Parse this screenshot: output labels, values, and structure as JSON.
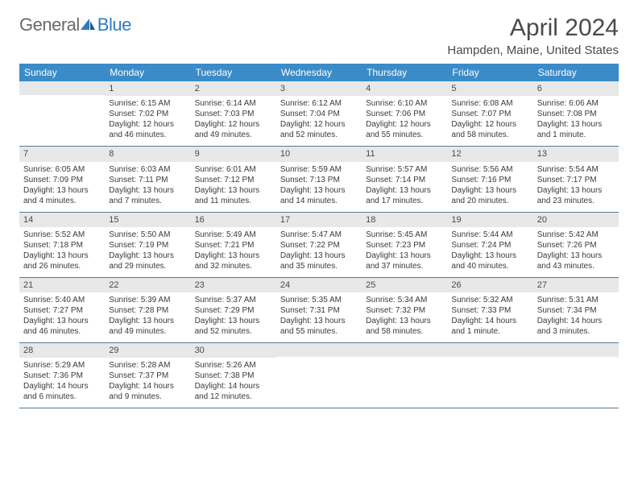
{
  "logo": {
    "text1": "General",
    "text2": "Blue"
  },
  "title": "April 2024",
  "location": "Hampden, Maine, United States",
  "colors": {
    "header_bg": "#3b8bc8",
    "header_text": "#ffffff",
    "daynum_bg": "#e8e8e8",
    "border": "#5a7a96",
    "text": "#3a3a3a",
    "title": "#4a4a4a"
  },
  "day_names": [
    "Sunday",
    "Monday",
    "Tuesday",
    "Wednesday",
    "Thursday",
    "Friday",
    "Saturday"
  ],
  "weeks": [
    [
      {
        "day": "",
        "lines": []
      },
      {
        "day": "1",
        "lines": [
          "Sunrise: 6:15 AM",
          "Sunset: 7:02 PM",
          "Daylight: 12 hours",
          "and 46 minutes."
        ]
      },
      {
        "day": "2",
        "lines": [
          "Sunrise: 6:14 AM",
          "Sunset: 7:03 PM",
          "Daylight: 12 hours",
          "and 49 minutes."
        ]
      },
      {
        "day": "3",
        "lines": [
          "Sunrise: 6:12 AM",
          "Sunset: 7:04 PM",
          "Daylight: 12 hours",
          "and 52 minutes."
        ]
      },
      {
        "day": "4",
        "lines": [
          "Sunrise: 6:10 AM",
          "Sunset: 7:06 PM",
          "Daylight: 12 hours",
          "and 55 minutes."
        ]
      },
      {
        "day": "5",
        "lines": [
          "Sunrise: 6:08 AM",
          "Sunset: 7:07 PM",
          "Daylight: 12 hours",
          "and 58 minutes."
        ]
      },
      {
        "day": "6",
        "lines": [
          "Sunrise: 6:06 AM",
          "Sunset: 7:08 PM",
          "Daylight: 13 hours",
          "and 1 minute."
        ]
      }
    ],
    [
      {
        "day": "7",
        "lines": [
          "Sunrise: 6:05 AM",
          "Sunset: 7:09 PM",
          "Daylight: 13 hours",
          "and 4 minutes."
        ]
      },
      {
        "day": "8",
        "lines": [
          "Sunrise: 6:03 AM",
          "Sunset: 7:11 PM",
          "Daylight: 13 hours",
          "and 7 minutes."
        ]
      },
      {
        "day": "9",
        "lines": [
          "Sunrise: 6:01 AM",
          "Sunset: 7:12 PM",
          "Daylight: 13 hours",
          "and 11 minutes."
        ]
      },
      {
        "day": "10",
        "lines": [
          "Sunrise: 5:59 AM",
          "Sunset: 7:13 PM",
          "Daylight: 13 hours",
          "and 14 minutes."
        ]
      },
      {
        "day": "11",
        "lines": [
          "Sunrise: 5:57 AM",
          "Sunset: 7:14 PM",
          "Daylight: 13 hours",
          "and 17 minutes."
        ]
      },
      {
        "day": "12",
        "lines": [
          "Sunrise: 5:56 AM",
          "Sunset: 7:16 PM",
          "Daylight: 13 hours",
          "and 20 minutes."
        ]
      },
      {
        "day": "13",
        "lines": [
          "Sunrise: 5:54 AM",
          "Sunset: 7:17 PM",
          "Daylight: 13 hours",
          "and 23 minutes."
        ]
      }
    ],
    [
      {
        "day": "14",
        "lines": [
          "Sunrise: 5:52 AM",
          "Sunset: 7:18 PM",
          "Daylight: 13 hours",
          "and 26 minutes."
        ]
      },
      {
        "day": "15",
        "lines": [
          "Sunrise: 5:50 AM",
          "Sunset: 7:19 PM",
          "Daylight: 13 hours",
          "and 29 minutes."
        ]
      },
      {
        "day": "16",
        "lines": [
          "Sunrise: 5:49 AM",
          "Sunset: 7:21 PM",
          "Daylight: 13 hours",
          "and 32 minutes."
        ]
      },
      {
        "day": "17",
        "lines": [
          "Sunrise: 5:47 AM",
          "Sunset: 7:22 PM",
          "Daylight: 13 hours",
          "and 35 minutes."
        ]
      },
      {
        "day": "18",
        "lines": [
          "Sunrise: 5:45 AM",
          "Sunset: 7:23 PM",
          "Daylight: 13 hours",
          "and 37 minutes."
        ]
      },
      {
        "day": "19",
        "lines": [
          "Sunrise: 5:44 AM",
          "Sunset: 7:24 PM",
          "Daylight: 13 hours",
          "and 40 minutes."
        ]
      },
      {
        "day": "20",
        "lines": [
          "Sunrise: 5:42 AM",
          "Sunset: 7:26 PM",
          "Daylight: 13 hours",
          "and 43 minutes."
        ]
      }
    ],
    [
      {
        "day": "21",
        "lines": [
          "Sunrise: 5:40 AM",
          "Sunset: 7:27 PM",
          "Daylight: 13 hours",
          "and 46 minutes."
        ]
      },
      {
        "day": "22",
        "lines": [
          "Sunrise: 5:39 AM",
          "Sunset: 7:28 PM",
          "Daylight: 13 hours",
          "and 49 minutes."
        ]
      },
      {
        "day": "23",
        "lines": [
          "Sunrise: 5:37 AM",
          "Sunset: 7:29 PM",
          "Daylight: 13 hours",
          "and 52 minutes."
        ]
      },
      {
        "day": "24",
        "lines": [
          "Sunrise: 5:35 AM",
          "Sunset: 7:31 PM",
          "Daylight: 13 hours",
          "and 55 minutes."
        ]
      },
      {
        "day": "25",
        "lines": [
          "Sunrise: 5:34 AM",
          "Sunset: 7:32 PM",
          "Daylight: 13 hours",
          "and 58 minutes."
        ]
      },
      {
        "day": "26",
        "lines": [
          "Sunrise: 5:32 AM",
          "Sunset: 7:33 PM",
          "Daylight: 14 hours",
          "and 1 minute."
        ]
      },
      {
        "day": "27",
        "lines": [
          "Sunrise: 5:31 AM",
          "Sunset: 7:34 PM",
          "Daylight: 14 hours",
          "and 3 minutes."
        ]
      }
    ],
    [
      {
        "day": "28",
        "lines": [
          "Sunrise: 5:29 AM",
          "Sunset: 7:36 PM",
          "Daylight: 14 hours",
          "and 6 minutes."
        ]
      },
      {
        "day": "29",
        "lines": [
          "Sunrise: 5:28 AM",
          "Sunset: 7:37 PM",
          "Daylight: 14 hours",
          "and 9 minutes."
        ]
      },
      {
        "day": "30",
        "lines": [
          "Sunrise: 5:26 AM",
          "Sunset: 7:38 PM",
          "Daylight: 14 hours",
          "and 12 minutes."
        ]
      },
      {
        "day": "",
        "lines": []
      },
      {
        "day": "",
        "lines": []
      },
      {
        "day": "",
        "lines": []
      },
      {
        "day": "",
        "lines": []
      }
    ]
  ]
}
